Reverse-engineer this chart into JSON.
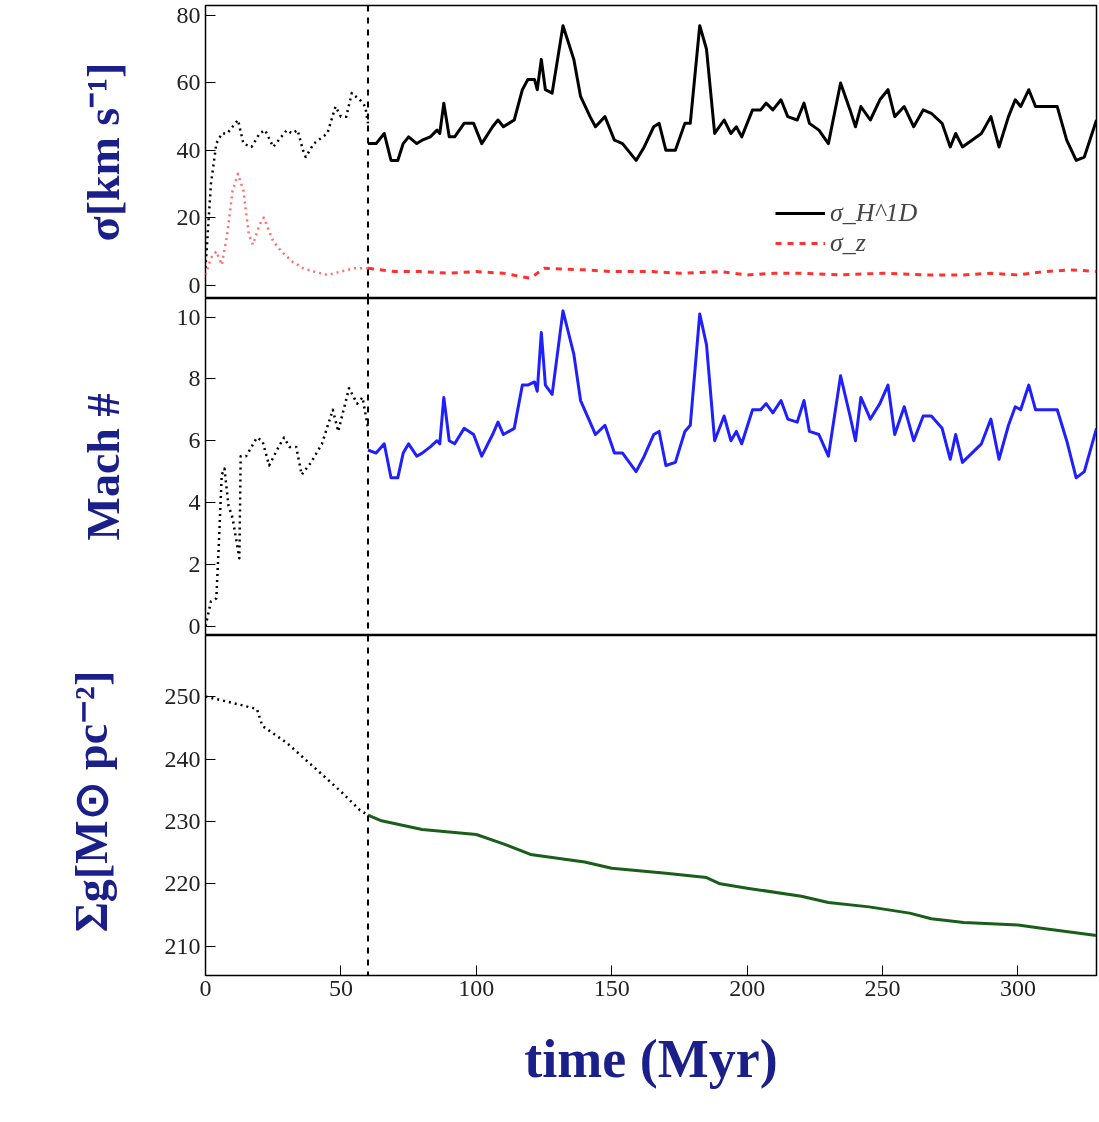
{
  "chart_data": [
    {
      "type": "line",
      "ylabel": "σ[km s⁻¹]",
      "xlim": [
        0,
        329
      ],
      "ylim": [
        -4,
        83
      ],
      "yticks": [
        0,
        20,
        40,
        60,
        80
      ],
      "xticks": [
        0,
        50,
        100,
        150,
        200,
        250,
        300
      ],
      "tick_labels": "y",
      "legend": "bottom right",
      "ref_lines": [
        {
          "axis": "x",
          "value": 60,
          "color": "#000000",
          "line_style": "dashed"
        }
      ],
      "series": [
        {
          "color": "#000000",
          "line_style": "dotted",
          "x": [
            0,
            2,
            4,
            6,
            8,
            10,
            12,
            14,
            17,
            20,
            22,
            25,
            28,
            30,
            32,
            34,
            36,
            37,
            40,
            45,
            48,
            50,
            52,
            54,
            57,
            59,
            60
          ],
          "values": [
            5,
            30,
            42,
            45,
            45,
            47,
            49,
            42,
            41,
            45,
            46,
            41,
            44,
            46,
            45,
            46,
            40,
            38,
            42,
            45,
            53,
            50,
            50,
            57,
            55,
            53,
            48
          ]
        },
        {
          "name": "σ_H^1D",
          "color": "#000000",
          "line_style": "solid",
          "x": [
            60,
            63,
            66,
            68.5,
            71,
            73,
            75,
            78,
            80,
            83,
            85.5,
            86.5,
            88,
            90,
            92,
            95.5,
            99,
            102,
            106,
            108,
            110,
            114,
            117,
            119,
            121.5,
            122.5,
            124,
            125.5,
            128,
            132,
            134,
            136,
            138.5,
            142,
            144,
            147.5,
            151,
            154,
            159,
            162,
            165.5,
            167.5,
            170,
            173.5,
            177,
            179,
            182.5,
            185,
            188,
            191.5,
            194,
            196,
            198,
            202,
            205,
            207,
            209.5,
            212.5,
            215,
            218.5,
            221,
            223,
            226.5,
            230,
            234.5,
            238,
            240,
            242,
            245.5,
            249,
            252,
            254.5,
            258,
            261.5,
            265,
            268,
            272,
            275,
            277,
            279.5,
            283,
            286.5,
            290,
            293,
            296.5,
            299,
            301,
            304,
            306.5,
            310,
            314.5,
            318,
            321.5,
            324.5,
            329
          ],
          "values": [
            42,
            42,
            45,
            37,
            37,
            42,
            44,
            42,
            43,
            44,
            46,
            45,
            54,
            44,
            44,
            48,
            48,
            42,
            47,
            49,
            47,
            49,
            58,
            61,
            61,
            58,
            67,
            58,
            57,
            77,
            72,
            67,
            56,
            50,
            47,
            50,
            43,
            42,
            37,
            41,
            47,
            48,
            40,
            40,
            48,
            48,
            77,
            70,
            45,
            49,
            45,
            47,
            44,
            52,
            52,
            54,
            52,
            55,
            50,
            49,
            54,
            48,
            46,
            42,
            60,
            52,
            47,
            53,
            49,
            55,
            58,
            50,
            53,
            47,
            52,
            51,
            48,
            41,
            45,
            41,
            43,
            45,
            50,
            41,
            50,
            55,
            53,
            58,
            53,
            53,
            53,
            43,
            37,
            38,
            49
          ]
        },
        {
          "color": "#ff7070",
          "line_style": "dotted",
          "x": [
            0,
            2,
            4,
            6,
            8,
            10,
            12,
            14,
            16,
            17.5,
            20,
            21.5,
            23,
            25,
            28,
            32,
            36,
            40,
            45,
            50,
            55,
            60
          ],
          "values": [
            3,
            8,
            10,
            6,
            15,
            28,
            33,
            28,
            15,
            12,
            18,
            20,
            17,
            13,
            10,
            7,
            5,
            4,
            3,
            4,
            5,
            5
          ]
        },
        {
          "name": "σ_z",
          "color": "#ff3030",
          "line_style": "dashed",
          "x": [
            60,
            70,
            80,
            90,
            100,
            110,
            120,
            125,
            140,
            150,
            165,
            175,
            190,
            200,
            210,
            220,
            235,
            250,
            265,
            280,
            290,
            300,
            310,
            320,
            329
          ],
          "values": [
            5,
            4,
            4,
            3.5,
            4,
            3.5,
            2,
            5,
            4.5,
            4,
            4,
            3.5,
            4,
            3,
            3.5,
            3.5,
            3,
            3.5,
            3,
            3,
            3.5,
            3,
            4,
            4.5,
            4
          ]
        }
      ]
    },
    {
      "type": "line",
      "ylabel": "Mach #",
      "xlim": [
        0,
        329
      ],
      "ylim": [
        -0.3,
        10.6
      ],
      "yticks": [
        0,
        2,
        4,
        6,
        8,
        10
      ],
      "xticks": [
        0,
        50,
        100,
        150,
        200,
        250,
        300
      ],
      "tick_labels": "y",
      "ref_lines": [
        {
          "axis": "x",
          "value": 60,
          "color": "#000000",
          "line_style": "dashed"
        }
      ],
      "series": [
        {
          "color": "#000000",
          "line_style": "dotted",
          "x": [
            0,
            2,
            4,
            5,
            6,
            7,
            8.5,
            10,
            12.5,
            13,
            15,
            19,
            21,
            23.5,
            27,
            29,
            31,
            33.5,
            35.5,
            39,
            43,
            47,
            49,
            53,
            56,
            58,
            60
          ],
          "values": [
            0,
            0.8,
            0.9,
            2.8,
            4.9,
            5.1,
            3.9,
            3.5,
            2.2,
            5.5,
            5.5,
            6.1,
            6.0,
            5.2,
            5.8,
            6.1,
            5.8,
            5.8,
            4.9,
            5.3,
            5.9,
            7.0,
            6.3,
            7.7,
            7.2,
            7.4,
            6.4
          ]
        },
        {
          "color": "#2020ff",
          "line_style": "solid",
          "x": [
            60,
            63,
            66,
            68.5,
            71,
            73,
            75,
            78,
            80,
            83,
            85.5,
            86.5,
            88,
            90,
            92,
            95.5,
            99,
            102,
            106,
            108,
            110,
            114,
            117,
            119,
            121.5,
            122.5,
            124,
            125.5,
            128,
            132,
            134,
            136,
            138.5,
            142,
            144,
            147.5,
            151,
            154,
            159,
            162,
            165.5,
            167.5,
            170,
            173.5,
            177,
            179,
            182.5,
            185,
            188,
            191.5,
            194,
            196,
            198,
            202,
            205,
            207,
            209.5,
            212.5,
            215,
            218.5,
            221,
            223,
            226.5,
            230,
            234.5,
            238,
            240,
            242,
            245.5,
            249,
            252,
            254.5,
            258,
            261.5,
            265,
            268,
            272,
            275,
            277,
            279.5,
            283,
            286.5,
            290,
            293,
            296.5,
            299,
            301,
            304,
            306.5,
            310,
            314.5,
            318,
            321.5,
            324.5,
            329
          ],
          "values": [
            5.7,
            5.6,
            5.9,
            4.8,
            4.8,
            5.6,
            5.9,
            5.5,
            5.6,
            5.8,
            6.0,
            5.9,
            7.4,
            6.0,
            5.9,
            6.4,
            6.2,
            5.5,
            6.2,
            6.6,
            6.2,
            6.4,
            7.8,
            7.8,
            7.9,
            7.6,
            9.5,
            7.8,
            7.5,
            10.2,
            9.5,
            8.8,
            7.3,
            6.6,
            6.2,
            6.5,
            5.6,
            5.6,
            5.0,
            5.5,
            6.2,
            6.3,
            5.2,
            5.3,
            6.3,
            6.5,
            10.1,
            9.1,
            6.0,
            6.8,
            6.0,
            6.3,
            5.9,
            7.0,
            7.0,
            7.2,
            6.9,
            7.3,
            6.7,
            6.6,
            7.3,
            6.3,
            6.2,
            5.5,
            8.1,
            6.8,
            6.0,
            7.4,
            6.7,
            7.2,
            7.8,
            6.2,
            7.1,
            6.0,
            6.8,
            6.8,
            6.4,
            5.4,
            6.2,
            5.3,
            5.6,
            5.9,
            6.7,
            5.4,
            6.5,
            7.1,
            7.0,
            7.8,
            7.0,
            7.0,
            7.0,
            6.0,
            4.8,
            5.0,
            6.4
          ]
        }
      ]
    },
    {
      "type": "line",
      "ylabel": "Σg[M⊙ pc⁻²]",
      "xlabel": "time (Myr)",
      "xlim": [
        0,
        329
      ],
      "ylim": [
        205.3,
        259.8
      ],
      "yticks": [
        210,
        220,
        230,
        240,
        250
      ],
      "xticks": [
        0,
        50,
        100,
        150,
        200,
        250,
        300
      ],
      "ref_lines": [
        {
          "axis": "x",
          "value": 60,
          "color": "#000000",
          "line_style": "dashed"
        }
      ],
      "series": [
        {
          "color": "#000000",
          "line_style": "dotted",
          "x": [
            0,
            10,
            19,
            21,
            30,
            40,
            50,
            57,
            60
          ],
          "values": [
            250,
            249,
            248,
            245.3,
            242.6,
            238.7,
            234.8,
            231.8,
            231
          ]
        },
        {
          "color": "#1a5e1a",
          "line_style": "solid",
          "x": [
            60,
            65,
            80,
            100,
            110,
            120,
            140,
            150,
            170,
            185,
            190,
            200,
            220,
            230,
            245,
            260,
            268,
            280,
            300,
            310,
            329
          ],
          "values": [
            231,
            230.1,
            228.7,
            227.9,
            226.4,
            224.7,
            223.5,
            222.5,
            221.7,
            221,
            220,
            219.3,
            218,
            217,
            216.3,
            215.3,
            214.4,
            213.8,
            213.4,
            212.8,
            211.7
          ]
        }
      ]
    }
  ]
}
